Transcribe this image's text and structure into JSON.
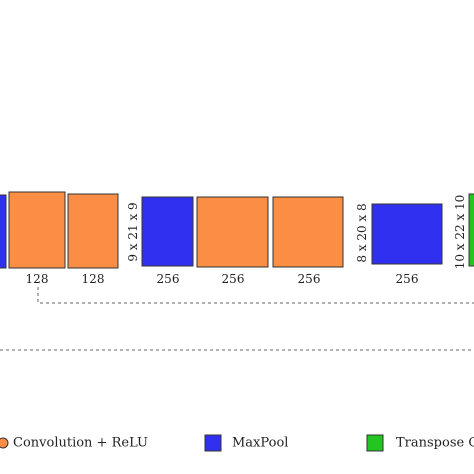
{
  "colors": {
    "conv_relu": "#fb8d45",
    "maxpool": "#3030f0",
    "transpose_conv": "#22c522",
    "outline": "#333333"
  },
  "blocks": [
    {
      "kind": "maxpool",
      "label": ""
    },
    {
      "kind": "conv_relu",
      "label": "128"
    },
    {
      "kind": "conv_relu",
      "label": "128"
    },
    {
      "kind": "maxpool",
      "label": "256",
      "dimension": "9 x 21 x 9"
    },
    {
      "kind": "conv_relu",
      "label": "256"
    },
    {
      "kind": "conv_relu",
      "label": "256"
    },
    {
      "kind": "maxpool",
      "label": "256",
      "dimension": "8 x 20 x 8"
    },
    {
      "kind": "transpose_conv",
      "label": "",
      "dimension": "10 x 22 x 10"
    }
  ],
  "legend": [
    {
      "kind": "conv_relu",
      "label": "Convolution + ReLU"
    },
    {
      "kind": "maxpool",
      "label": "MaxPool"
    },
    {
      "kind": "transpose_conv",
      "label": "Transpose C"
    }
  ]
}
